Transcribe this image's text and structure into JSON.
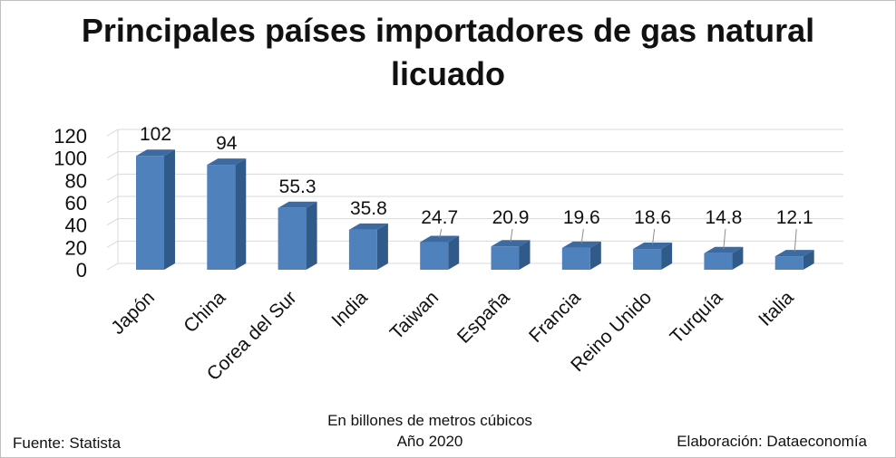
{
  "chart_data": {
    "type": "bar",
    "title_line1": "Principales países importadores de gas natural",
    "title_line2": "licuado",
    "categories": [
      "Japón",
      "China",
      "Corea del Sur",
      "India",
      "Taiwan",
      "España",
      "Francia",
      "Reino Unido",
      "Turquía",
      "Italia"
    ],
    "values": [
      102,
      94,
      55.3,
      35.8,
      24.7,
      20.9,
      19.6,
      18.6,
      14.8,
      12.1
    ],
    "value_labels": [
      "102",
      "94",
      "55.3",
      "35.8",
      "24.7",
      "20.9",
      "19.6",
      "18.6",
      "14.8",
      "12.1"
    ],
    "yticks": [
      "0",
      "20",
      "40",
      "60",
      "80",
      "100",
      "120"
    ],
    "ylim": [
      0,
      120
    ],
    "grid": true,
    "bar_color": "#4f81bd",
    "bar_side_color": "#2f5a8a",
    "bar_top_color": "#3d6aa0"
  },
  "footer": {
    "source": "Fuente: Statista",
    "unit_note": "En billones de metros cúbicos",
    "year": "Año 2020",
    "credit": "Elaboración: Dataeconomía"
  }
}
